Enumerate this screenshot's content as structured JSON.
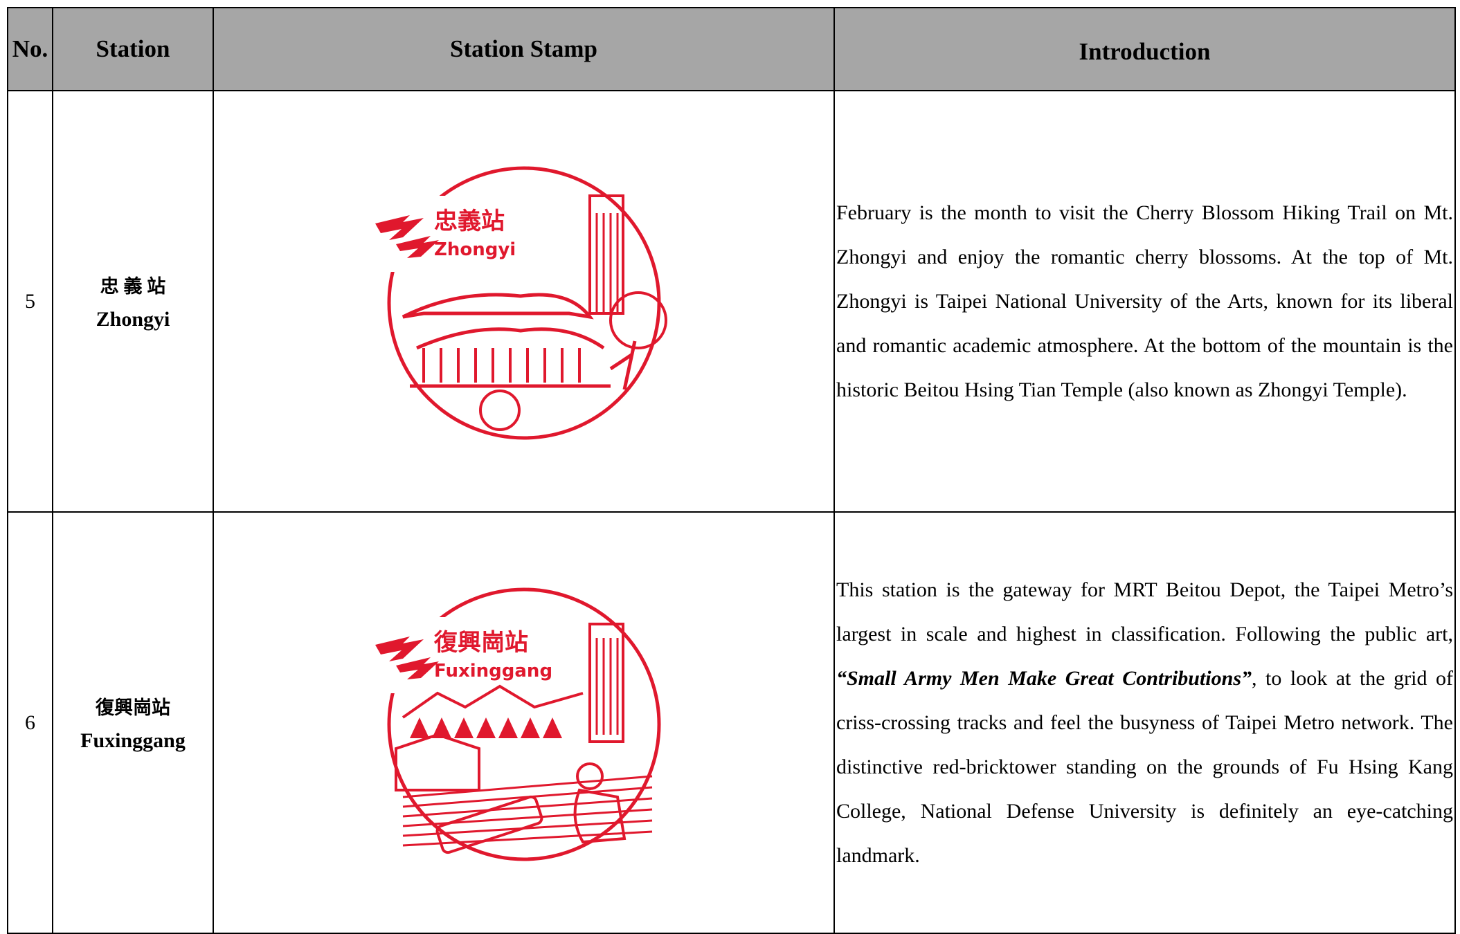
{
  "table": {
    "header": [
      "No.",
      "Station",
      "Station Stamp",
      "Introduction"
    ],
    "rows": [
      {
        "no": "5",
        "station_zh": "忠 義 站",
        "station_en": "Zhongyi",
        "stamp": {
          "name_zh": "忠義站",
          "name_en": "Zhongyi"
        },
        "intro_before": "February is the month to visit the Cherry Blossom Hiking Trail on Mt. Zhongyi and enjoy the romantic cherry blossoms. At the top of Mt. Zhongyi is Taipei National University of the Arts, known for its liberal and romantic academic atmosphere. At the bottom of the mountain is the historic Beitou Hsing Tian Temple (also known as Zhongyi Temple).",
        "intro_emphasis": null,
        "intro_after": null
      },
      {
        "no": "6",
        "station_zh": "復興崗站",
        "station_en": "Fuxinggang",
        "stamp": {
          "name_zh": "復興崗站",
          "name_en": "Fuxinggang"
        },
        "intro_before": "This station is the gateway for MRT Beitou Depot, the Taipei Metro’s largest in scale and highest in classification. Following the public art, ",
        "intro_emphasis": "“Small Army Men Make Great Contributions”",
        "intro_after": ", to look at the grid of criss-crossing tracks and feel the busyness of Taipei Metro network. The distinctive red-bricktower standing on the grounds of Fu Hsing Kang College, National Defense University is definitely an eye-catching landmark."
      }
    ]
  }
}
